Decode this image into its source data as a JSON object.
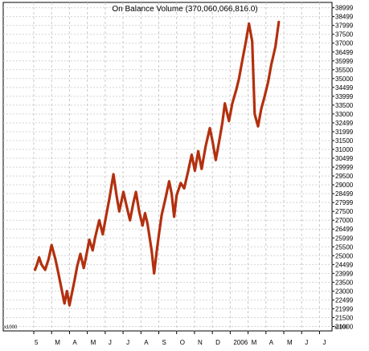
{
  "chart_data": {
    "type": "line",
    "title": "On Balance Volume (370,060,066,816.0)",
    "line_color": "#b3300f",
    "grid": true,
    "ylim": [
      20750,
      39300
    ],
    "y_ticks": [
      21000,
      21500,
      21999,
      22499,
      23000,
      23500,
      23999,
      24499,
      25000,
      25500,
      25999,
      26499,
      27000,
      27500,
      27999,
      28499,
      29000,
      29500,
      29999,
      30499,
      31000,
      31500,
      31999,
      32499,
      33000,
      33500,
      33999,
      34499,
      35000,
      35500,
      35999,
      36499,
      37000,
      37500,
      37999,
      38499,
      38999
    ],
    "y_tick_labels": [
      "21000",
      "21500",
      "21999",
      "22499",
      "23000",
      "23500",
      "23999",
      "24499",
      "25000",
      "25500",
      "25999",
      "26499",
      "27000",
      "27500",
      "27999",
      "28499",
      "29000",
      "29500",
      "29999",
      "30499",
      "31000",
      "31500",
      "31999",
      "32499",
      "33000",
      "33500",
      "33999",
      "34499",
      "35000",
      "35500",
      "35999",
      "36499",
      "37000",
      "37500",
      "37999",
      "38499",
      "38999"
    ],
    "bottom_left_label": "x1000",
    "bottom_right_label": "x1000",
    "x_ticks": [
      {
        "pos": 0,
        "label": "5"
      },
      {
        "pos": 1,
        "label": "M"
      },
      {
        "pos": 2,
        "label": "A"
      },
      {
        "pos": 3,
        "label": "M"
      },
      {
        "pos": 4,
        "label": "J"
      },
      {
        "pos": 5,
        "label": "J"
      },
      {
        "pos": 6,
        "label": "A"
      },
      {
        "pos": 7,
        "label": "S"
      },
      {
        "pos": 8,
        "label": "O"
      },
      {
        "pos": 9,
        "label": "N"
      },
      {
        "pos": 10,
        "label": "D"
      },
      {
        "pos": 11,
        "label": "2006"
      },
      {
        "pos": 12,
        "label": "M"
      },
      {
        "pos": 13,
        "label": "A"
      },
      {
        "pos": 14,
        "label": "M"
      },
      {
        "pos": 15,
        "label": "J"
      },
      {
        "pos": 16,
        "label": "J"
      }
    ],
    "xlim": [
      0,
      16.7
    ],
    "series": [
      {
        "x": [
          0.07,
          0.2,
          0.3,
          0.43,
          0.64,
          0.83,
          1.0,
          1.21,
          1.36,
          1.54,
          1.72,
          1.86,
          2.0,
          2.28,
          2.43,
          2.61,
          2.8,
          2.93,
          3.11,
          3.3,
          3.43,
          3.67,
          3.86,
          4.04,
          4.23,
          4.46,
          4.65,
          4.79,
          5.02,
          5.2,
          5.39,
          5.58,
          5.72,
          5.9,
          6.09,
          6.23,
          6.37,
          6.6,
          6.74,
          6.88,
          7.02,
          7.16,
          7.39,
          7.58,
          7.72,
          7.86,
          8.0,
          8.23,
          8.42,
          8.65,
          8.84,
          9.02,
          9.21,
          9.4,
          9.63,
          9.86,
          10.0,
          10.19,
          10.37,
          10.56,
          10.7,
          10.93,
          11.12,
          11.35,
          11.49,
          11.67,
          11.86,
          12.05,
          12.23,
          12.37,
          12.56,
          12.74,
          12.93,
          13.12,
          13.3,
          13.53,
          13.72
        ],
        "y": [
          24200,
          24550,
          24900,
          24500,
          24200,
          24800,
          25600,
          24800,
          24100,
          23200,
          22300,
          23000,
          22200,
          23600,
          24400,
          25100,
          24300,
          24950,
          25900,
          25300,
          26000,
          27000,
          26200,
          27200,
          28200,
          29600,
          28300,
          27500,
          28600,
          27800,
          27000,
          28000,
          28600,
          27500,
          26700,
          27400,
          26800,
          25300,
          24000,
          25200,
          26300,
          27300,
          28300,
          29200,
          28500,
          27200,
          28400,
          29100,
          28800,
          29800,
          30700,
          29800,
          30900,
          29900,
          31200,
          32200,
          31500,
          30400,
          31400,
          32500,
          33600,
          32600,
          33600,
          34400,
          35000,
          36000,
          37000,
          38100,
          37100,
          33000,
          32300,
          33300,
          34000,
          34800,
          35800,
          36800,
          38200
        ]
      }
    ]
  }
}
